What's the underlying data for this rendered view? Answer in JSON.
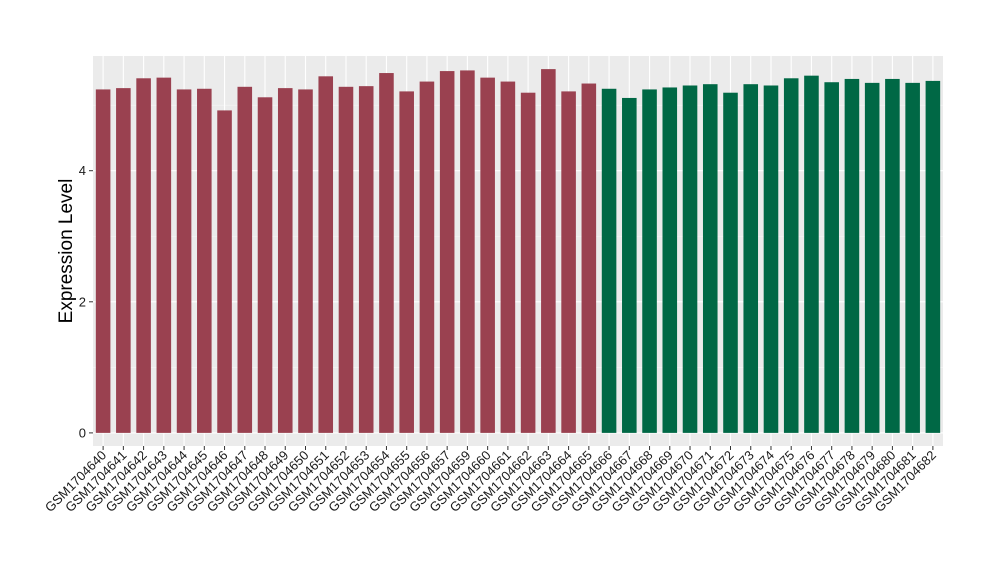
{
  "chart_data": {
    "type": "bar",
    "title": "",
    "xlabel": "",
    "ylabel": "Expression Level",
    "ylim": [
      -0.2,
      5.75
    ],
    "yticks": [
      0,
      2,
      4
    ],
    "grid": true,
    "legend": "none",
    "panel_color": "#ebebeb",
    "categories": [
      "GSM1704640",
      "GSM1704641",
      "GSM1704642",
      "GSM1704643",
      "GSM1704644",
      "GSM1704645",
      "GSM1704646",
      "GSM1704647",
      "GSM1704648",
      "GSM1704649",
      "GSM1704650",
      "GSM1704651",
      "GSM1704652",
      "GSM1704653",
      "GSM1704654",
      "GSM1704655",
      "GSM1704656",
      "GSM1704657",
      "GSM1704659",
      "GSM1704660",
      "GSM1704661",
      "GSM1704662",
      "GSM1704663",
      "GSM1704664",
      "GSM1704665",
      "GSM1704666",
      "GSM1704667",
      "GSM1704668",
      "GSM1704669",
      "GSM1704670",
      "GSM1704671",
      "GSM1704672",
      "GSM1704673",
      "GSM1704674",
      "GSM1704675",
      "GSM1704676",
      "GSM1704677",
      "GSM1704678",
      "GSM1704679",
      "GSM1704680",
      "GSM1704681",
      "GSM1704682"
    ],
    "values": [
      5.24,
      5.26,
      5.41,
      5.42,
      5.24,
      5.25,
      4.92,
      5.28,
      5.12,
      5.26,
      5.24,
      5.44,
      5.28,
      5.29,
      5.49,
      5.21,
      5.36,
      5.52,
      5.53,
      5.42,
      5.36,
      5.19,
      5.55,
      5.21,
      5.33,
      5.25,
      5.11,
      5.24,
      5.27,
      5.3,
      5.32,
      5.19,
      5.32,
      5.3,
      5.41,
      5.45,
      5.35,
      5.4,
      5.34,
      5.4,
      5.34,
      5.37
    ],
    "colors": [
      "#9a4150",
      "#9a4150",
      "#9a4150",
      "#9a4150",
      "#9a4150",
      "#9a4150",
      "#9a4150",
      "#9a4150",
      "#9a4150",
      "#9a4150",
      "#9a4150",
      "#9a4150",
      "#9a4150",
      "#9a4150",
      "#9a4150",
      "#9a4150",
      "#9a4150",
      "#9a4150",
      "#9a4150",
      "#9a4150",
      "#9a4150",
      "#9a4150",
      "#9a4150",
      "#9a4150",
      "#9a4150",
      "#006845",
      "#006845",
      "#006845",
      "#006845",
      "#006845",
      "#006845",
      "#006845",
      "#006845",
      "#006845",
      "#006845",
      "#006845",
      "#006845",
      "#006845",
      "#006845",
      "#006845",
      "#006845",
      "#006845"
    ]
  }
}
